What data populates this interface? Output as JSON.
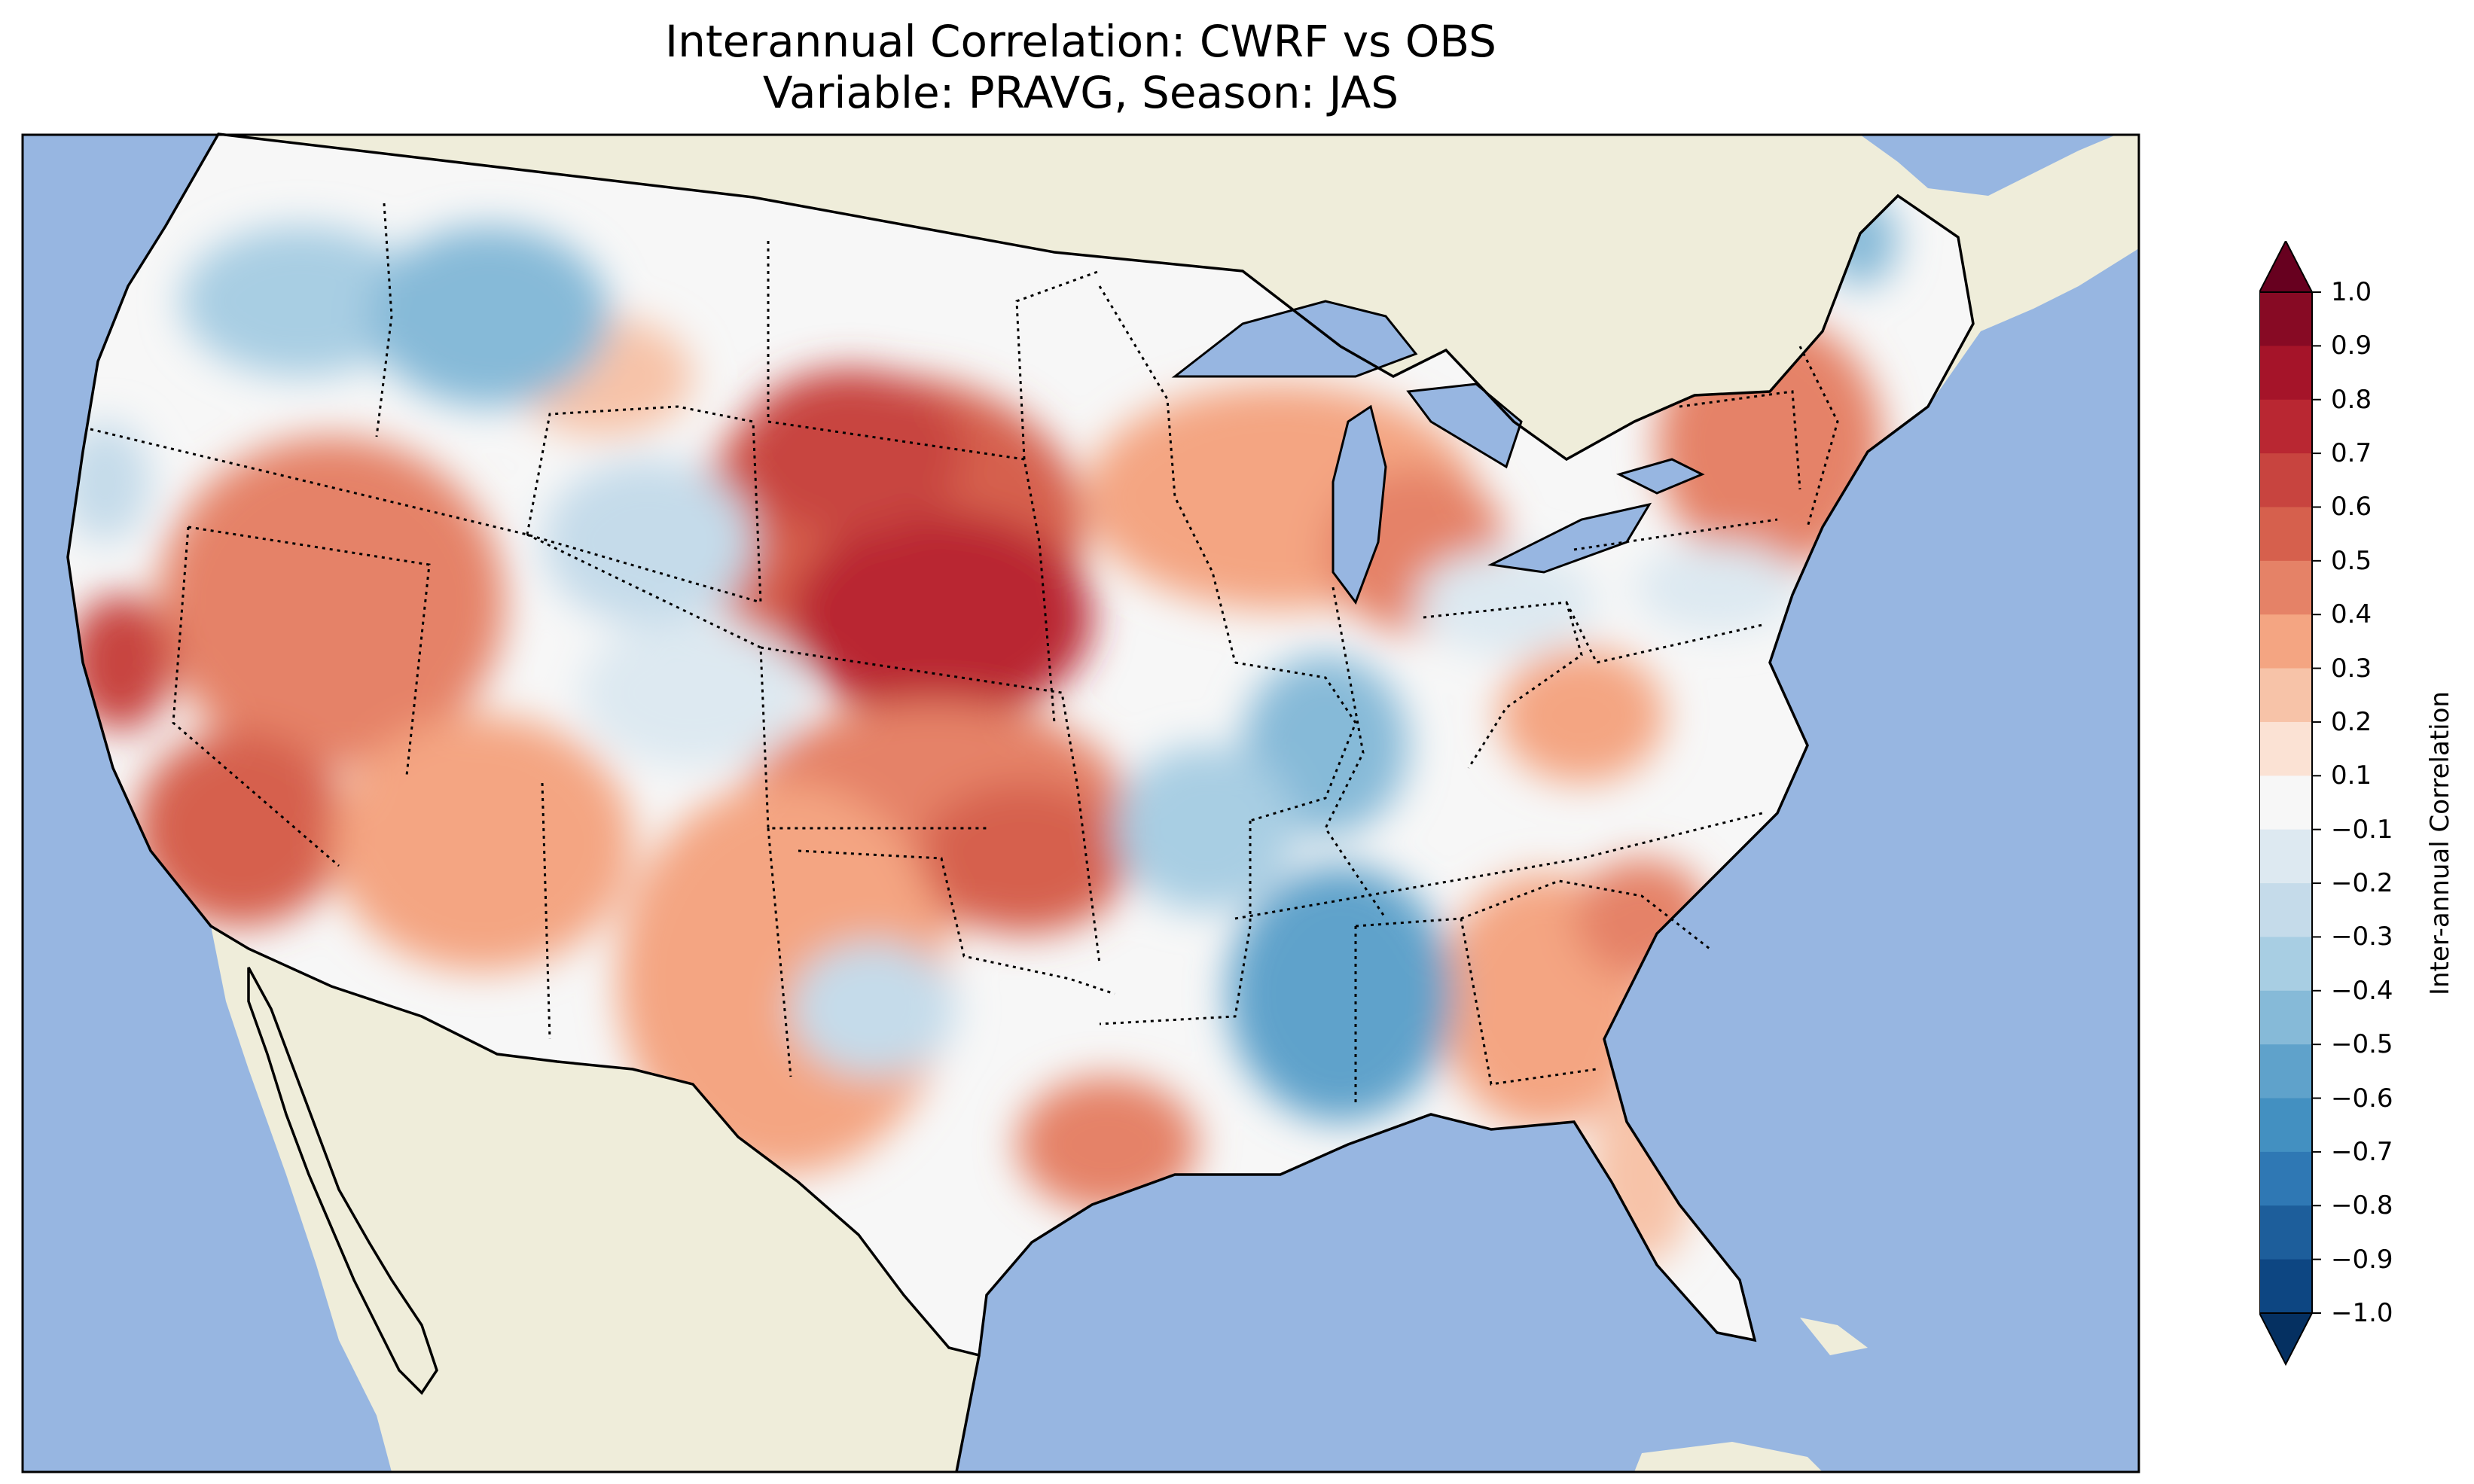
{
  "figure": {
    "title_line1": "Interannual Correlation: CWRF vs OBS",
    "title_line2": "Variable: PRAVG, Season: JAS"
  },
  "colorbar": {
    "label": "Inter-annual Correlation",
    "ticks": [
      "1.0",
      "0.9",
      "0.8",
      "0.7",
      "0.6",
      "0.5",
      "0.4",
      "0.3",
      "0.2",
      "0.1",
      "−0.1",
      "−0.2",
      "−0.3",
      "−0.4",
      "−0.5",
      "−0.6",
      "−0.7",
      "−0.8",
      "−0.9",
      "−1.0"
    ],
    "colors_top_to_bottom": [
      "#67001f",
      "#870a24",
      "#a51429",
      "#b92732",
      "#c8443f",
      "#d6604d",
      "#e58267",
      "#f4a582",
      "#f7c3a8",
      "#fbe2d4",
      "#f7f7f7",
      "#dde9f1",
      "#c5dbea",
      "#a8cee3",
      "#86bad8",
      "#5fa2cb",
      "#4390c1",
      "#2f78b4",
      "#1d5e9b",
      "#0d4682",
      "#053061"
    ],
    "extend": "both"
  },
  "map": {
    "ocean_color": "#97b6e1",
    "land_color": "#efedda",
    "region": "Contiguous United States",
    "field": "PRAVG JAS interannual correlation",
    "hotspots": [
      {
        "name": "Great Plains (NE/SD/WY)",
        "value": 0.8
      },
      {
        "name": "Kansas/Oklahoma",
        "value": 0.6
      },
      {
        "name": "Great Basin (NV/UT)",
        "value": 0.5
      },
      {
        "name": "Southern California",
        "value": 0.6
      },
      {
        "name": "Wisconsin/Michigan",
        "value": 0.5
      },
      {
        "name": "New England",
        "value": 0.5
      },
      {
        "name": "Carolinas/Georgia",
        "value": 0.4
      },
      {
        "name": "Texas",
        "value": 0.4
      },
      {
        "name": "Pacific Northwest",
        "value": -0.3
      },
      {
        "name": "Idaho/Montana",
        "value": -0.4
      },
      {
        "name": "Mississippi/Alabama",
        "value": -0.6
      },
      {
        "name": "Indiana/Kentucky/Tennessee",
        "value": -0.5
      },
      {
        "name": "Colorado/Utah",
        "value": -0.2
      },
      {
        "name": "Texas Panhandle/New Mexico",
        "value": -0.2
      },
      {
        "name": "Maine",
        "value": -0.4
      }
    ]
  }
}
